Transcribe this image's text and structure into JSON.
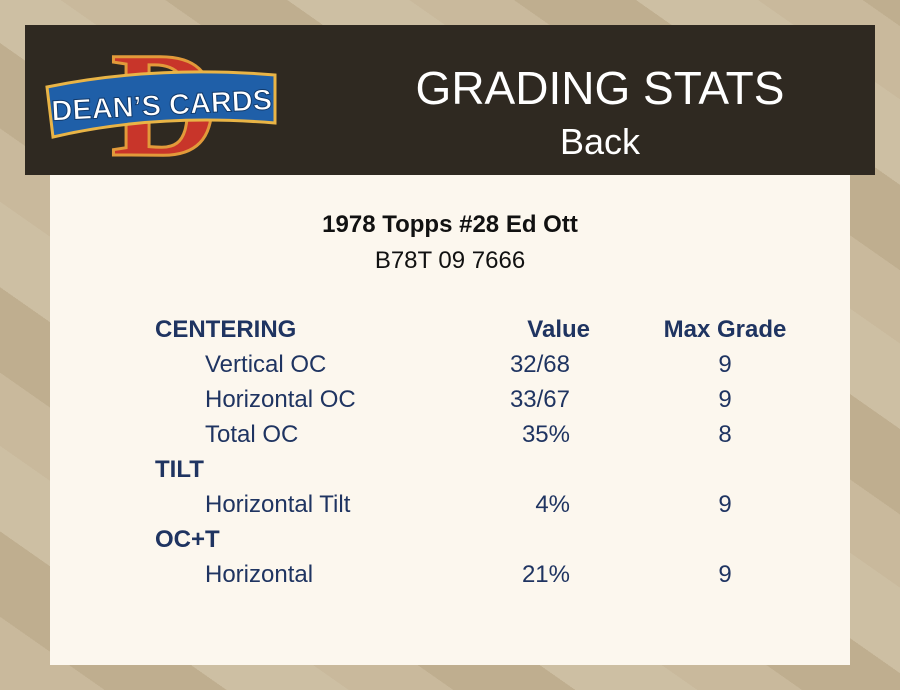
{
  "header": {
    "logo": {
      "letter": "D",
      "text": "DEAN’S CARDS"
    },
    "title": "GRADING STATS",
    "subtitle": "Back"
  },
  "card": {
    "name": "1978 Topps #28 Ed Ott",
    "cert": "B78T 09 7666"
  },
  "table": {
    "columns": [
      "Value",
      "Max Grade"
    ],
    "sections": [
      {
        "name": "CENTERING",
        "rows": [
          {
            "label": "Vertical OC",
            "value": "32/68",
            "max_grade": 9
          },
          {
            "label": "Horizontal OC",
            "value": "33/67",
            "max_grade": 9
          },
          {
            "label": "Total OC",
            "value": "35%",
            "max_grade": 8
          }
        ]
      },
      {
        "name": "TILT",
        "rows": [
          {
            "label": "Horizontal Tilt",
            "value": "4%",
            "max_grade": 9
          }
        ]
      },
      {
        "name": "OC+T",
        "rows": [
          {
            "label": "Horizontal",
            "value": "21%",
            "max_grade": 9
          }
        ]
      }
    ]
  }
}
